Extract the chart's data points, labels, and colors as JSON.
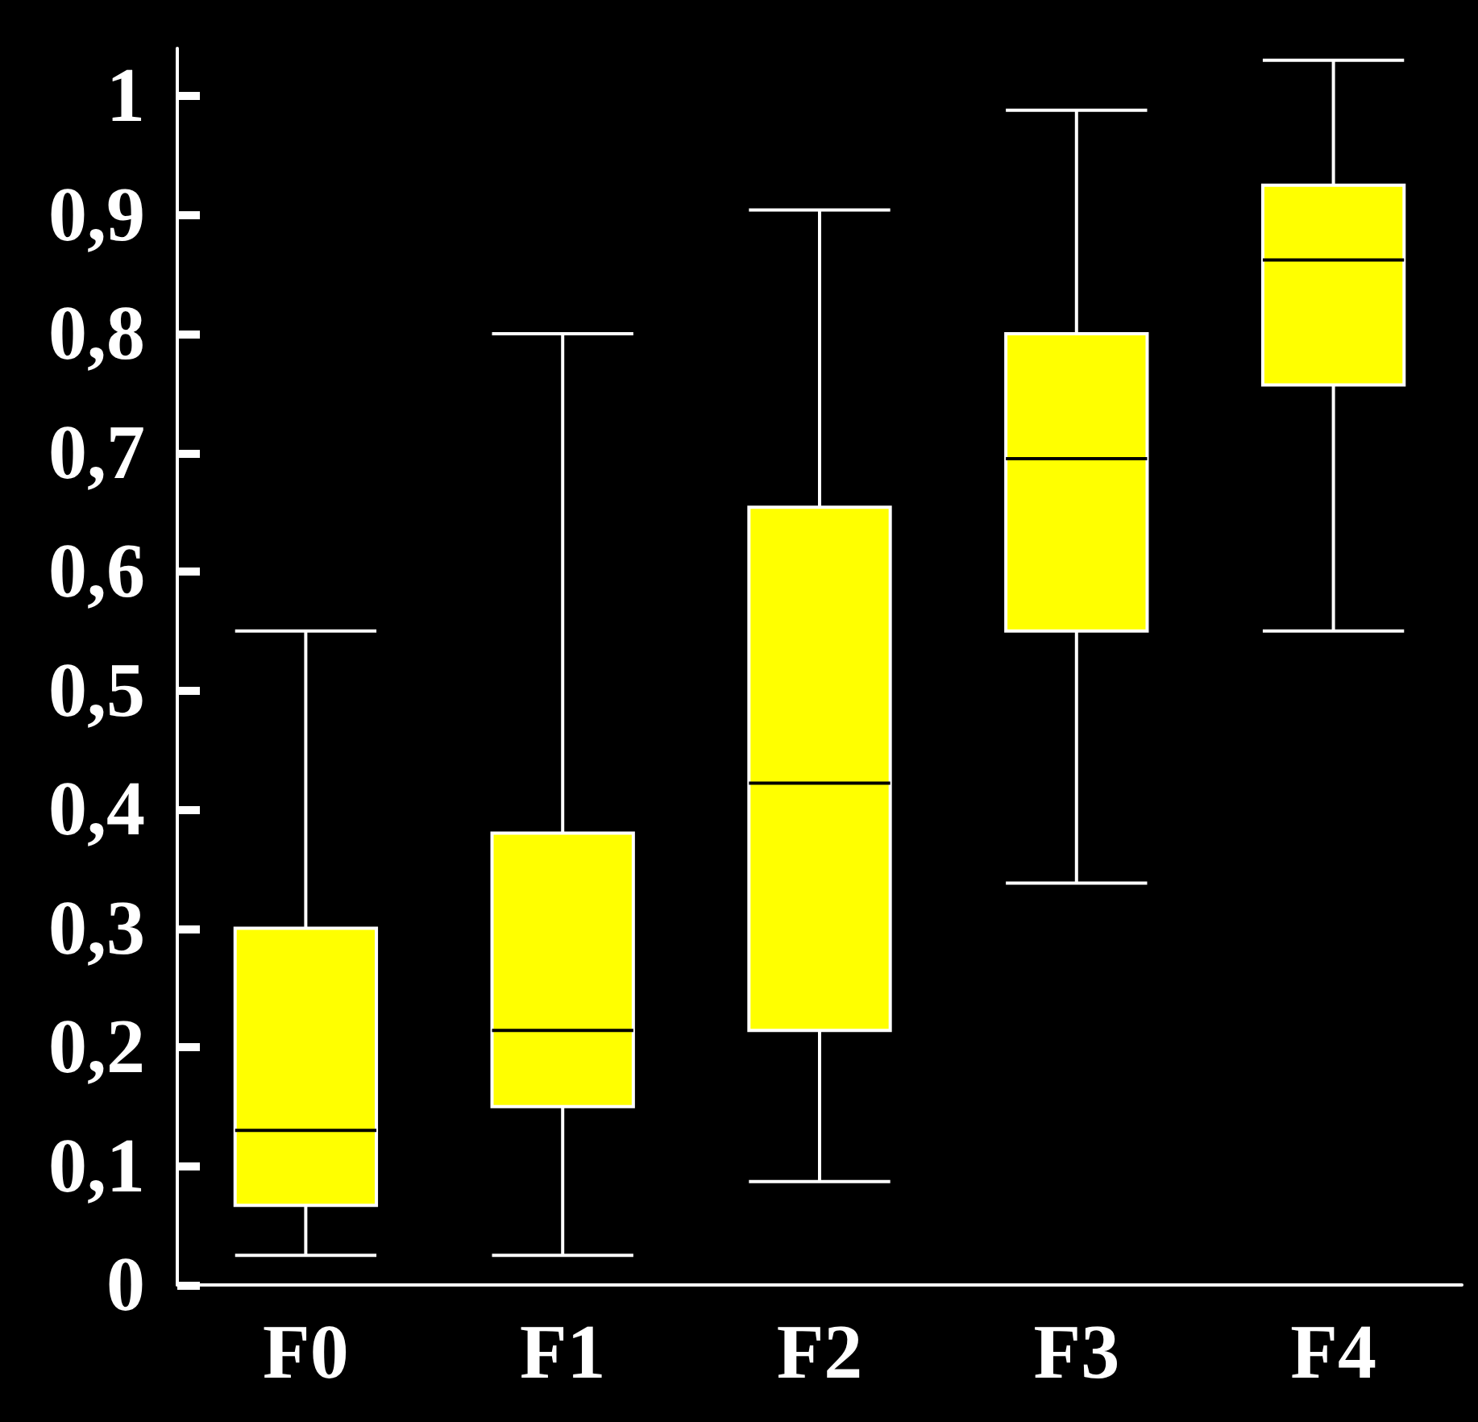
{
  "chart_data": {
    "type": "box",
    "categories": [
      "F0",
      "F1",
      "F2",
      "F3",
      "F4"
    ],
    "boxes": [
      {
        "low": 0.025,
        "q1": 0.067,
        "median": 0.13,
        "q3": 0.3,
        "high": 0.55
      },
      {
        "low": 0.025,
        "q1": 0.15,
        "median": 0.214,
        "q3": 0.38,
        "high": 0.8
      },
      {
        "low": 0.087,
        "q1": 0.214,
        "median": 0.422,
        "q3": 0.654,
        "high": 0.904
      },
      {
        "low": 0.338,
        "q1": 0.55,
        "median": 0.695,
        "q3": 0.8,
        "high": 0.988
      },
      {
        "low": 0.55,
        "q1": 0.757,
        "median": 0.862,
        "q3": 0.925,
        "high": 1.03
      }
    ],
    "color": "#ffff00",
    "ylim": [
      0,
      1.04
    ],
    "yticks": [
      0,
      {
        "value": 0.1,
        "label": "0,1"
      },
      {
        "value": 0.2,
        "label": "0,2"
      },
      {
        "value": 0.3,
        "label": "0,3"
      },
      {
        "value": 0.4,
        "label": "0,4"
      },
      {
        "value": 0.5,
        "label": "0,5"
      },
      {
        "value": 0.6,
        "label": "0,6"
      },
      {
        "value": 0.7,
        "label": "0,7"
      },
      {
        "value": 0.8,
        "label": "0,8"
      },
      {
        "value": 0.9,
        "label": "0,9"
      },
      1
    ],
    "grid": false
  }
}
